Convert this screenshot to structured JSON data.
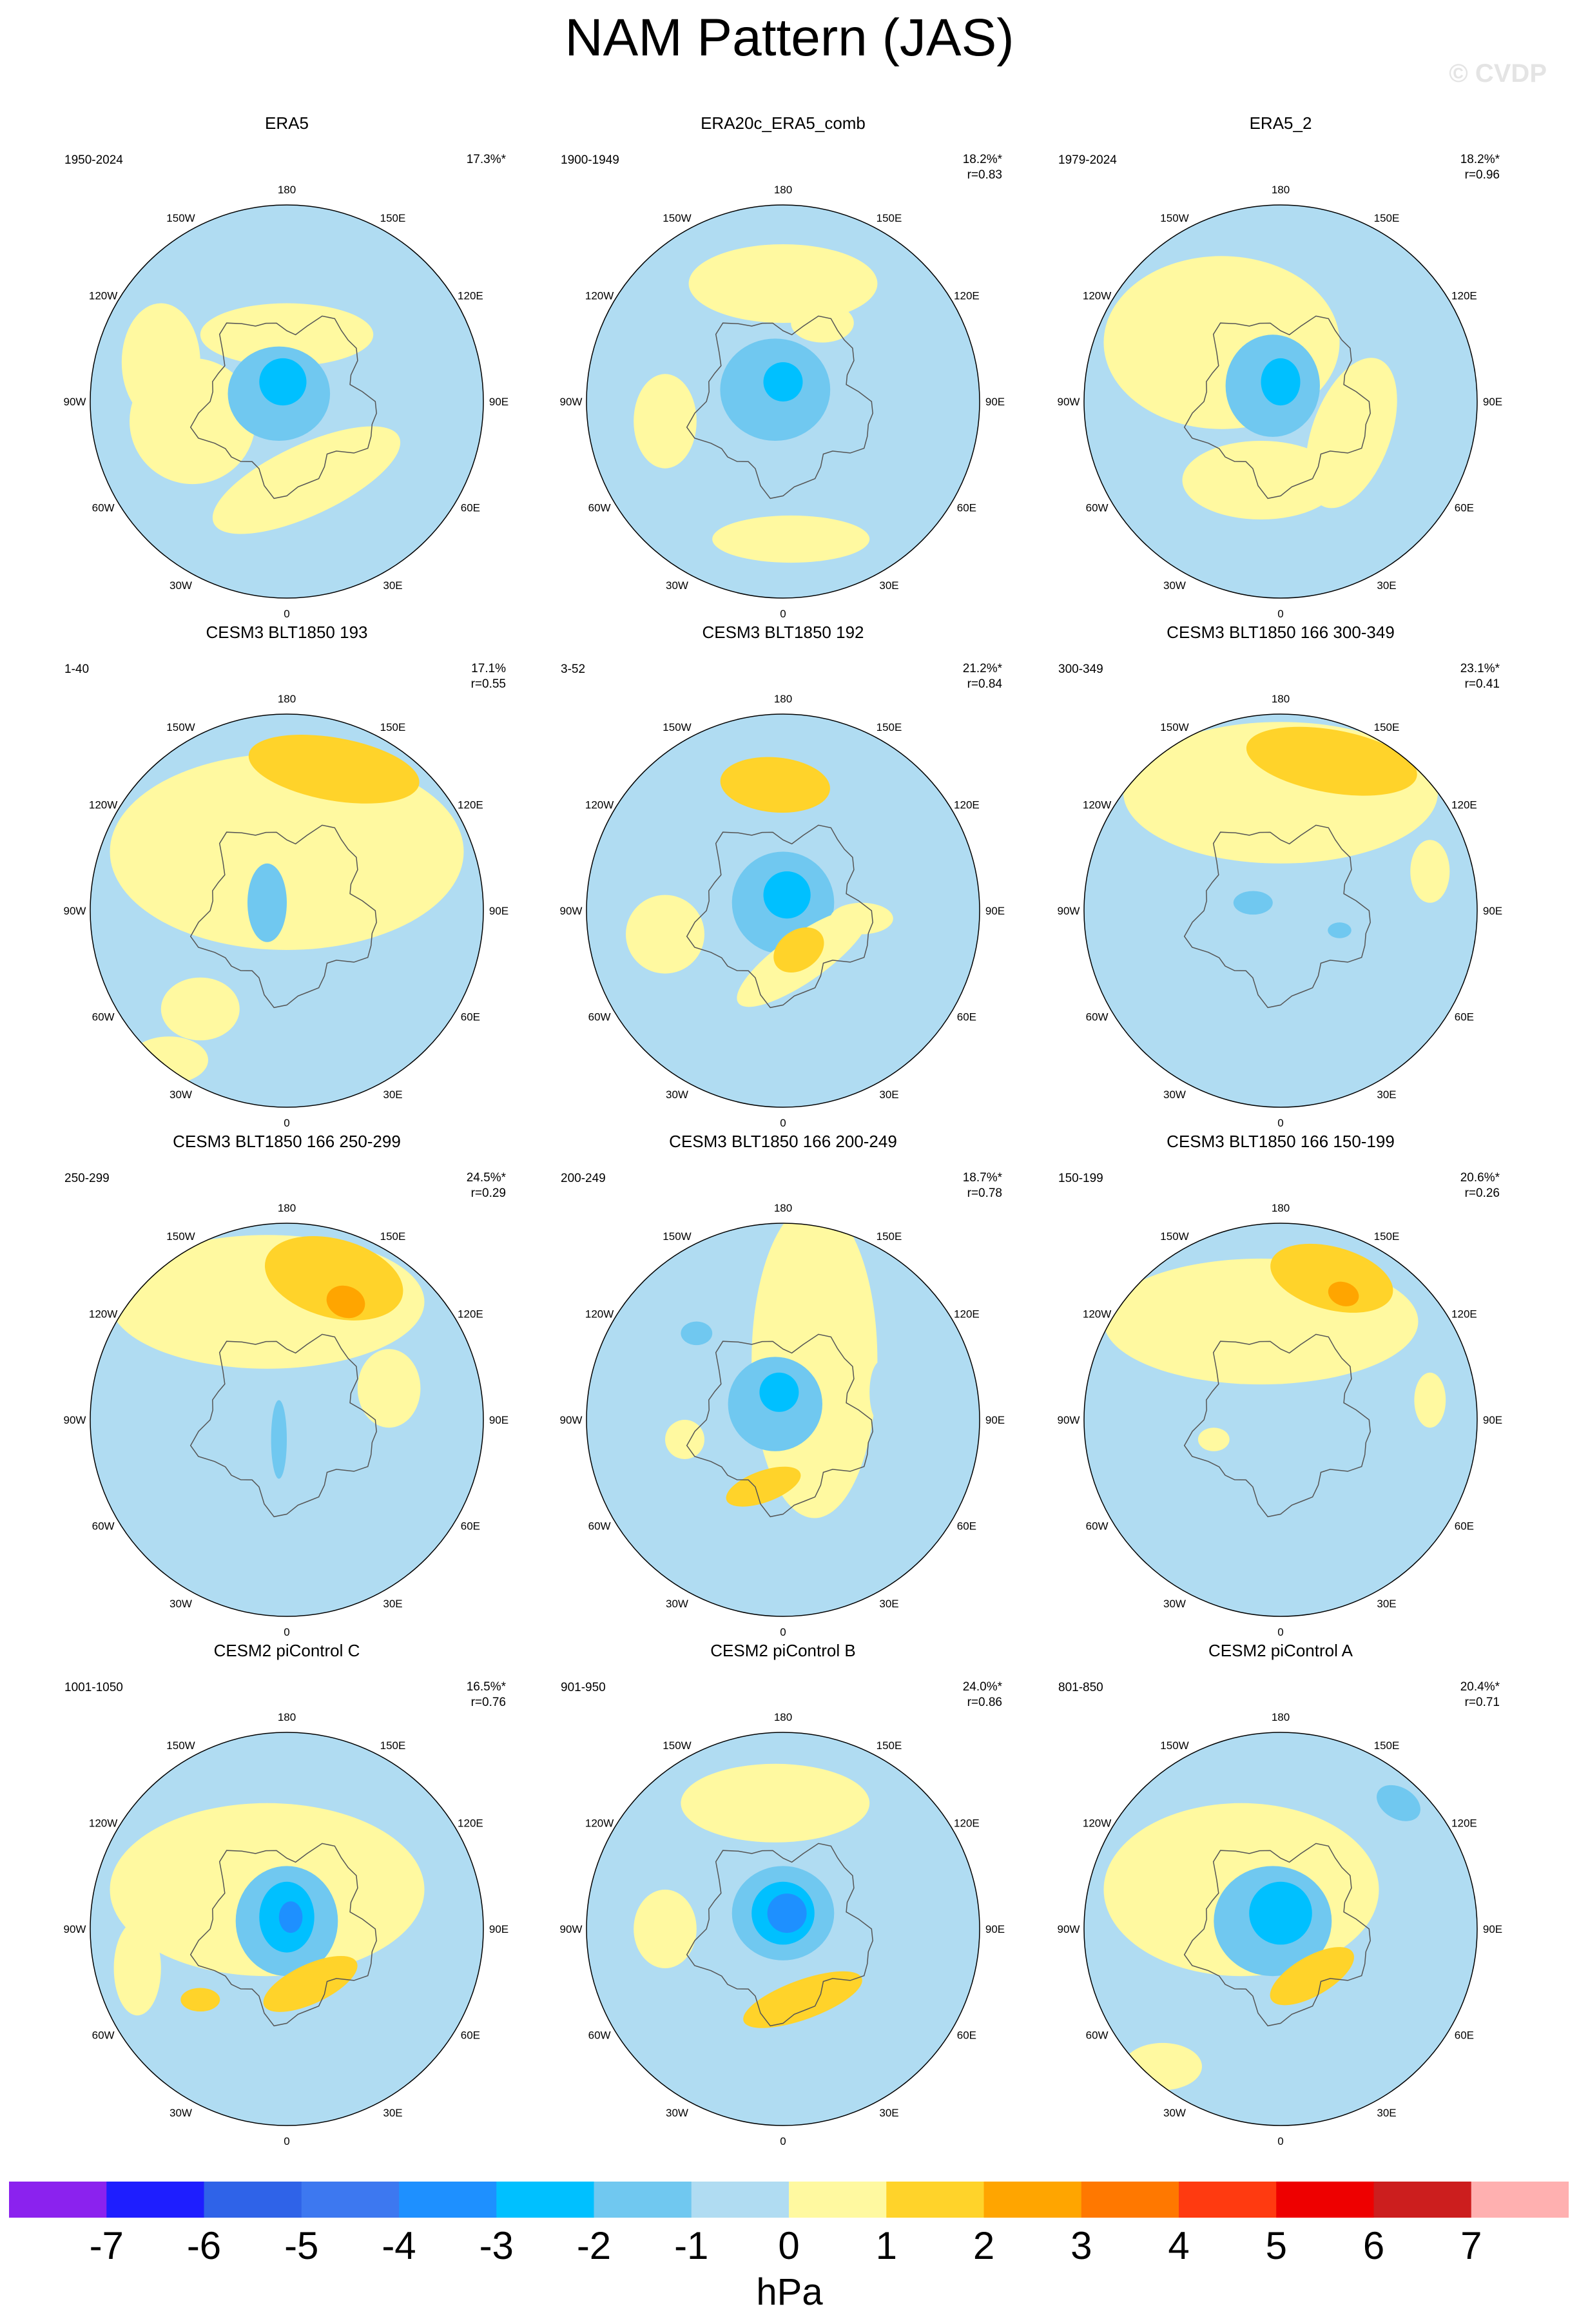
{
  "title": "NAM Pattern (JAS)",
  "watermark": "© CVDP",
  "lon_labels": [
    "180",
    "150E",
    "120E",
    "90E",
    "60E",
    "30E",
    "0",
    "30W",
    "60W",
    "90W",
    "120W",
    "150W"
  ],
  "colors": {
    "neg7": "#8B22EE",
    "neg6": "#1E1EFF",
    "neg5": "#2F63E8",
    "neg4": "#3D78F0",
    "neg3": "#1E90FF",
    "neg2": "#00C0FF",
    "neg1": "#70C8F0",
    "neg0": "#B0DCF2",
    "pos0": "#FFF9A0",
    "pos1": "#FFD32A",
    "pos2": "#FFA500",
    "pos3": "#FF7800",
    "pos4": "#FF3A10",
    "pos5": "#EE0000",
    "pos6": "#CC1E1E",
    "pos7": "#FFB0B0"
  },
  "panels": [
    {
      "name": "ERA5",
      "years": "1950-2024",
      "pct": "17.3%*",
      "r": "",
      "style": 0
    },
    {
      "name": "ERA20c_ERA5_comb",
      "years": "1900-1949",
      "pct": "18.2%*",
      "r": "r=0.83",
      "style": 1
    },
    {
      "name": "ERA5_2",
      "years": "1979-2024",
      "pct": "18.2%*",
      "r": "r=0.96",
      "style": 2
    },
    {
      "name": "CESM3 BLT1850 193",
      "years": "1-40",
      "pct": "17.1%",
      "r": "r=0.55",
      "style": 3
    },
    {
      "name": "CESM3 BLT1850 192",
      "years": "3-52",
      "pct": "21.2%*",
      "r": "r=0.84",
      "style": 4
    },
    {
      "name": "CESM3 BLT1850 166 300-349",
      "years": "300-349",
      "pct": "23.1%*",
      "r": "r=0.41",
      "style": 5
    },
    {
      "name": "CESM3 BLT1850 166 250-299",
      "years": "250-299",
      "pct": "24.5%*",
      "r": "r=0.29",
      "style": 6
    },
    {
      "name": "CESM3 BLT1850 166 200-249",
      "years": "200-249",
      "pct": "18.7%*",
      "r": "r=0.78",
      "style": 7
    },
    {
      "name": "CESM3 BLT1850 166 150-199",
      "years": "150-199",
      "pct": "20.6%*",
      "r": "r=0.26",
      "style": 8
    },
    {
      "name": "CESM2 piControl C",
      "years": "1001-1050",
      "pct": "16.5%*",
      "r": "r=0.76",
      "style": 9
    },
    {
      "name": "CESM2 piControl B",
      "years": "901-950",
      "pct": "24.0%*",
      "r": "r=0.86",
      "style": 10
    },
    {
      "name": "CESM2 piControl A",
      "years": "801-850",
      "pct": "20.4%*",
      "r": "r=0.71",
      "style": 11
    }
  ],
  "colorbar": {
    "ticks": [
      "-7",
      "-6",
      "-5",
      "-4",
      "-3",
      "-2",
      "-1",
      "0",
      "1",
      "2",
      "3",
      "4",
      "5",
      "6",
      "7"
    ],
    "units": "hPa"
  }
}
